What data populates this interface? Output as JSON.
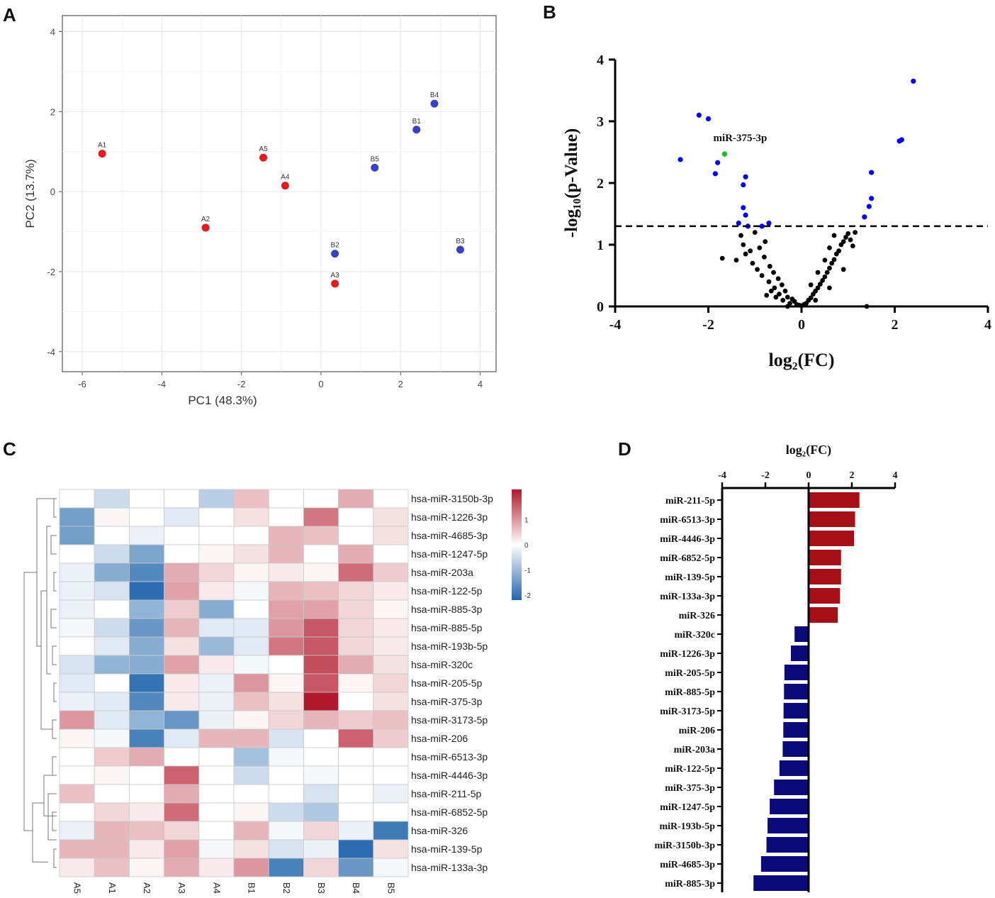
{
  "panels": {
    "a": "A",
    "b": "B",
    "c": "C",
    "d": "D"
  },
  "chart_data": [
    {
      "type": "scatter",
      "panel": "A",
      "title": "",
      "xlabel": "PC1 (48.3%)",
      "ylabel": "PC2 (13.7%)",
      "xlim": [
        -6.5,
        4.4
      ],
      "ylim": [
        -4.5,
        4.4
      ],
      "xticks": [
        -6,
        -4,
        -2,
        0,
        2,
        4
      ],
      "yticks": [
        -4,
        -2,
        0,
        2,
        4
      ],
      "grid": true,
      "colors": {
        "A": "#e41a1c",
        "B": "#3b3fc4"
      },
      "points": [
        {
          "label": "A1",
          "group": "A",
          "x": -5.5,
          "y": 0.95
        },
        {
          "label": "A2",
          "group": "A",
          "x": -2.9,
          "y": -0.9
        },
        {
          "label": "A3",
          "group": "A",
          "x": 0.35,
          "y": -2.3
        },
        {
          "label": "A4",
          "group": "A",
          "x": -0.9,
          "y": 0.15
        },
        {
          "label": "A5",
          "group": "A",
          "x": -1.45,
          "y": 0.85
        },
        {
          "label": "B1",
          "group": "B",
          "x": 2.4,
          "y": 1.55
        },
        {
          "label": "B2",
          "group": "B",
          "x": 0.35,
          "y": -1.55
        },
        {
          "label": "B3",
          "group": "B",
          "x": 3.5,
          "y": -1.45
        },
        {
          "label": "B4",
          "group": "B",
          "x": 2.85,
          "y": 2.2
        },
        {
          "label": "B5",
          "group": "B",
          "x": 1.35,
          "y": 0.6
        }
      ]
    },
    {
      "type": "scatter",
      "panel": "B",
      "title": "",
      "xlabel": "log₂(FC)",
      "ylabel": "-log₁₀(p-Value)",
      "xlim": [
        -4,
        4
      ],
      "ylim": [
        0,
        4
      ],
      "xticks": [
        -4,
        -2,
        0,
        2,
        4
      ],
      "yticks": [
        0,
        1,
        2,
        3,
        4
      ],
      "threshold": 1.3,
      "annotation": {
        "text": "miR-375-3p",
        "x": -1.65,
        "y": 2.47
      },
      "colors": {
        "ns": "#000000",
        "sig": "#0000ff",
        "highlight": "#22c022"
      },
      "significant": [
        [
          -2.6,
          2.38
        ],
        [
          -2.2,
          3.1
        ],
        [
          -2.0,
          3.04
        ],
        [
          -1.85,
          2.15
        ],
        [
          -1.8,
          2.33
        ],
        [
          -1.25,
          1.97
        ],
        [
          -1.2,
          2.1
        ],
        [
          -1.25,
          1.6
        ],
        [
          -1.2,
          1.48
        ],
        [
          -1.35,
          1.35
        ],
        [
          -1.15,
          1.3
        ],
        [
          -0.85,
          1.3
        ],
        [
          -0.7,
          1.35
        ],
        [
          1.35,
          1.45
        ],
        [
          1.45,
          1.62
        ],
        [
          1.5,
          1.75
        ],
        [
          1.5,
          2.17
        ],
        [
          2.1,
          2.68
        ],
        [
          2.15,
          2.7
        ],
        [
          2.4,
          3.65
        ]
      ],
      "highlight": [
        -1.65,
        2.47
      ],
      "nonsignificant": [
        [
          -1.7,
          0.78
        ],
        [
          -1.4,
          0.75
        ],
        [
          -1.3,
          1.15
        ],
        [
          -1.25,
          1.0
        ],
        [
          -1.2,
          0.85
        ],
        [
          -1.1,
          0.9
        ],
        [
          -1.05,
          0.7
        ],
        [
          -1.0,
          1.2
        ],
        [
          -0.95,
          0.6
        ],
        [
          -0.9,
          0.95
        ],
        [
          -0.85,
          0.5
        ],
        [
          -0.8,
          0.8
        ],
        [
          -0.78,
          1.05
        ],
        [
          -0.7,
          0.4
        ],
        [
          -0.68,
          0.65
        ],
        [
          -0.6,
          0.55
        ],
        [
          -0.58,
          0.3
        ],
        [
          -0.5,
          0.45
        ],
        [
          -0.48,
          0.2
        ],
        [
          -0.42,
          0.35
        ],
        [
          -0.4,
          0.1
        ],
        [
          -0.35,
          0.25
        ],
        [
          -0.3,
          0.15
        ],
        [
          -0.25,
          0.05
        ],
        [
          -0.2,
          0.12
        ],
        [
          -0.15,
          0.08
        ],
        [
          -0.1,
          0.03
        ],
        [
          -0.05,
          0.02
        ],
        [
          -0.3,
          0.0
        ],
        [
          0.0,
          0.01
        ],
        [
          0.05,
          0.03
        ],
        [
          0.1,
          0.05
        ],
        [
          0.15,
          0.1
        ],
        [
          0.2,
          0.14
        ],
        [
          0.25,
          0.2
        ],
        [
          0.3,
          0.25
        ],
        [
          0.35,
          0.3
        ],
        [
          0.4,
          0.36
        ],
        [
          0.45,
          0.42
        ],
        [
          0.5,
          0.48
        ],
        [
          0.55,
          0.55
        ],
        [
          0.6,
          0.62
        ],
        [
          0.65,
          0.7
        ],
        [
          0.7,
          0.76
        ],
        [
          0.75,
          0.85
        ],
        [
          0.8,
          0.9
        ],
        [
          0.85,
          1.0
        ],
        [
          0.9,
          1.05
        ],
        [
          0.95,
          1.12
        ],
        [
          1.0,
          1.18
        ],
        [
          1.05,
          1.08
        ],
        [
          1.1,
          0.98
        ],
        [
          1.15,
          1.2
        ],
        [
          0.2,
          0.35
        ],
        [
          0.35,
          0.55
        ],
        [
          0.5,
          0.75
        ],
        [
          0.6,
          0.95
        ],
        [
          0.7,
          1.15
        ],
        [
          0.3,
          0.1
        ],
        [
          0.6,
          0.3
        ],
        [
          0.9,
          0.6
        ],
        [
          -0.55,
          0.15
        ],
        [
          -0.65,
          0.25
        ],
        [
          -0.75,
          0.18
        ],
        [
          1.4,
          0.0
        ]
      ]
    },
    {
      "type": "heatmap",
      "panel": "C",
      "title": "",
      "columns": [
        "A5",
        "A1",
        "A2",
        "A3",
        "A4",
        "B1",
        "B2",
        "B3",
        "B4",
        "B5"
      ],
      "rows": [
        "hsa-miR-3150b-3p",
        "hsa-miR-1226-3p",
        "hsa-miR-4685-3p",
        "hsa-miR-1247-5p",
        "hsa-miR-203a",
        "hsa-miR-122-5p",
        "hsa-miR-885-3p",
        "hsa-miR-885-5p",
        "hsa-miR-193b-5p",
        "hsa-miR-320c",
        "hsa-miR-205-5p",
        "hsa-miR-375-3p",
        "hsa-miR-3173-5p",
        "hsa-miR-206",
        "hsa-miR-6513-3p",
        "hsa-miR-4446-3p",
        "hsa-miR-211-5p",
        "hsa-miR-6852-5p",
        "hsa-miR-326",
        "hsa-miR-139-5p",
        "hsa-miR-133a-3p"
      ],
      "values": [
        [
          0,
          -0.5,
          0,
          0,
          -0.7,
          0.6,
          0,
          0,
          0.8,
          0
        ],
        [
          -1.4,
          0.1,
          0,
          -0.3,
          0,
          0.3,
          0,
          1.3,
          0,
          0.3
        ],
        [
          -1.4,
          0,
          -0.2,
          0,
          0,
          0,
          0.7,
          0.6,
          0,
          0.3
        ],
        [
          0,
          -0.5,
          -1.3,
          0,
          0.1,
          0.3,
          0.7,
          0,
          0.8,
          0
        ],
        [
          -0.2,
          -1.2,
          -1.7,
          0.8,
          0.4,
          0.1,
          0.2,
          0.1,
          1.4,
          0.5
        ],
        [
          -0.2,
          -0.4,
          -2.1,
          0.9,
          0.2,
          -0.1,
          0.7,
          0.6,
          0.4,
          0.2
        ],
        [
          -0.2,
          0,
          -1.1,
          0.5,
          -1.2,
          0,
          0.9,
          0.9,
          0.4,
          0.1
        ],
        [
          -0.1,
          -0.5,
          -1.5,
          0.7,
          -0.3,
          -0.3,
          1.0,
          1.6,
          0.4,
          0.2
        ],
        [
          0,
          -0.3,
          -1.2,
          0.3,
          -1.0,
          -0.3,
          1.3,
          1.6,
          0.4,
          0.2
        ],
        [
          -0.4,
          -1.1,
          -1.2,
          0.9,
          0.2,
          -0.1,
          0,
          1.7,
          0.8,
          0.3
        ],
        [
          -0.3,
          0,
          -2.0,
          0.2,
          -0.2,
          1.0,
          0.1,
          1.6,
          0.1,
          0.4
        ],
        [
          -0.2,
          -0.3,
          -1.7,
          0.2,
          -0.2,
          0.6,
          0.3,
          2.2,
          0,
          0.3
        ],
        [
          1.0,
          -0.3,
          -1.1,
          -1.5,
          -0.2,
          0.1,
          0.4,
          0.7,
          0.5,
          0.6
        ],
        [
          0.1,
          -0.1,
          -1.8,
          -0.3,
          0.7,
          0.7,
          -0.4,
          0,
          1.5,
          0.5
        ],
        [
          0,
          0.5,
          0.8,
          0,
          0,
          -0.9,
          -0.1,
          0,
          0,
          0
        ],
        [
          0,
          0.1,
          0,
          1.5,
          0,
          -0.5,
          0,
          -0.1,
          0,
          0
        ],
        [
          0.6,
          0,
          0,
          0.8,
          0,
          0,
          0,
          -0.4,
          0,
          -0.2
        ],
        [
          0,
          0.4,
          0.2,
          1.4,
          0,
          0.1,
          -0.5,
          -0.8,
          0,
          0
        ],
        [
          -0.2,
          0.7,
          0.6,
          0.4,
          0,
          0.7,
          -0.1,
          0.4,
          -0.2,
          -1.9
        ],
        [
          0.7,
          0.7,
          0.2,
          0.9,
          -0.1,
          0.3,
          -0.4,
          -0.2,
          -2.1,
          0.3
        ],
        [
          0.2,
          0.6,
          0.1,
          0.8,
          0.2,
          1.0,
          -1.8,
          0.4,
          -1.5,
          -0.1
        ]
      ],
      "color_scale": {
        "min": -2.2,
        "max": 2.2,
        "low": "#2166ac",
        "mid": "#ffffff",
        "high": "#b2182b"
      },
      "legend_ticks": [
        1,
        0,
        -1,
        -2
      ],
      "legend_tick_labels": [
        "1",
        "0",
        "-1",
        "-2"
      ]
    },
    {
      "type": "bar",
      "panel": "D",
      "orientation": "horizontal",
      "title": "log₂(FC)",
      "xlabel": "log₂(FC)",
      "xlim": [
        -4,
        4
      ],
      "xticks": [
        -4,
        -2,
        0,
        2,
        4
      ],
      "colors": {
        "up": "#a50f15",
        "down": "#0a0a7a"
      },
      "categories": [
        "miR-211-5p",
        "miR-6513-3p",
        "miR-4446-3p",
        "miR-6852-5p",
        "miR-139-5p",
        "miR-133a-3p",
        "miR-326",
        "miR-320c",
        "miR-1226-3p",
        "miR-205-5p",
        "miR-885-5p",
        "miR-3173-5p",
        "miR-206",
        "miR-203a",
        "miR-122-5p",
        "miR-375-3p",
        "miR-1247-5p",
        "miR-193b-5p",
        "miR-3150b-3p",
        "miR-4685-3p",
        "miR-885-3p"
      ],
      "values": [
        2.35,
        2.15,
        2.1,
        1.5,
        1.5,
        1.45,
        1.35,
        -0.65,
        -0.82,
        -1.12,
        -1.14,
        -1.16,
        -1.17,
        -1.2,
        -1.35,
        -1.6,
        -1.8,
        -1.9,
        -1.95,
        -2.2,
        -2.55
      ]
    }
  ]
}
